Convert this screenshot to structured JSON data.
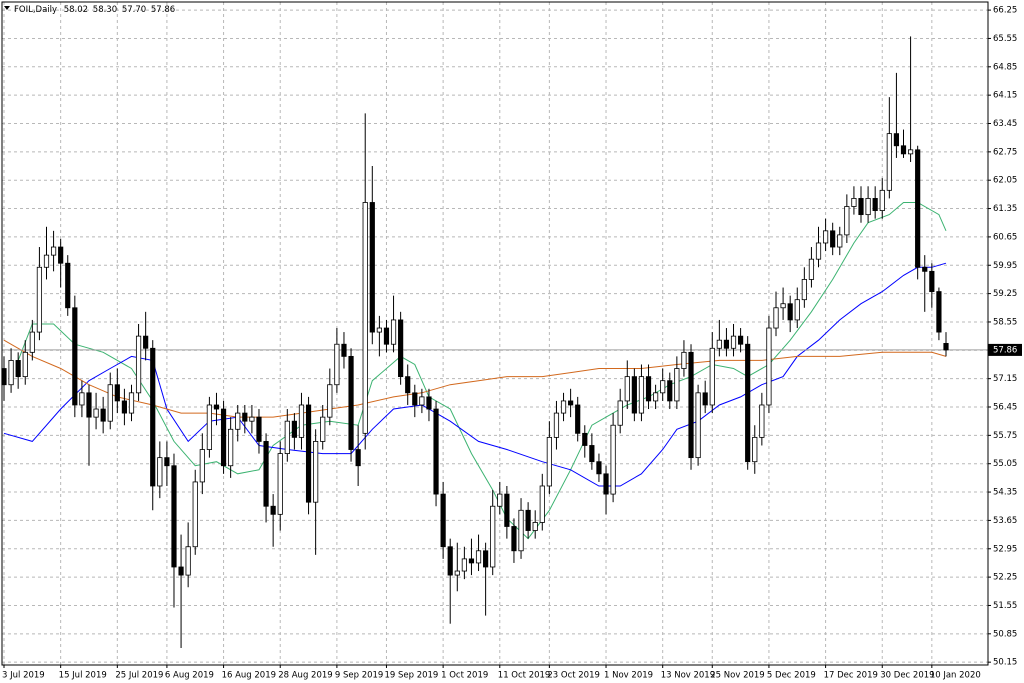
{
  "chart_data": {
    "type": "candlestick",
    "title": "FOIL,Daily",
    "header_labels": {
      "open": "58.02",
      "high": "58.30",
      "low": "57.70",
      "close": "57.86"
    },
    "categories": [
      "3 Jul 2019",
      null,
      null,
      null,
      null,
      null,
      null,
      null,
      "15 Jul 2019",
      null,
      null,
      null,
      null,
      null,
      null,
      null,
      "25 Jul 2019",
      null,
      null,
      null,
      null,
      null,
      null,
      "6 Aug 2019",
      null,
      null,
      null,
      null,
      null,
      null,
      null,
      "16 Aug 2019",
      null,
      null,
      null,
      null,
      null,
      null,
      null,
      "28 Aug 2019",
      null,
      null,
      null,
      null,
      null,
      null,
      null,
      "9 Sep 2019",
      null,
      null,
      null,
      null,
      null,
      null,
      "19 Sep 2019",
      null,
      null,
      null,
      null,
      null,
      null,
      null,
      "1 Oct 2019",
      null,
      null,
      null,
      null,
      null,
      null,
      null,
      "11 Oct 2019",
      null,
      null,
      null,
      null,
      null,
      null,
      "23 Oct 2019",
      null,
      null,
      null,
      null,
      null,
      null,
      null,
      "1 Nov 2019",
      null,
      null,
      null,
      null,
      null,
      null,
      null,
      "13 Nov 2019",
      null,
      null,
      null,
      null,
      null,
      null,
      "25 Nov 2019",
      null,
      null,
      null,
      null,
      null,
      null,
      null,
      "5 Dec 2019",
      null,
      null,
      null,
      null,
      null,
      null,
      null,
      "17 Dec 2019",
      null,
      null,
      null,
      null,
      null,
      null,
      null,
      "30 Dec 2019",
      null,
      null,
      null,
      null,
      null,
      null,
      "10 Jan 2020",
      null,
      null
    ],
    "series": [
      {
        "up_color": "#ffffff",
        "down_color": "#000000",
        "outline": "#000000",
        "open": [
          57.4,
          57.0,
          57.6,
          57.2,
          57.8,
          58.3,
          59.9,
          60.2,
          60.4,
          60.0,
          58.9,
          56.5,
          56.8,
          56.2,
          56.4,
          56.1,
          57.0,
          56.6,
          56.3,
          56.8,
          58.2,
          57.9,
          54.5,
          55.2,
          55.0,
          52.5,
          52.3,
          53.0,
          54.6,
          55.4,
          56.5,
          56.4,
          55.0,
          55.9,
          56.3,
          56.1,
          56.2,
          55.6,
          54.0,
          53.8,
          55.3,
          56.1,
          55.7,
          56.5,
          54.1,
          55.6,
          56.2,
          57.0,
          58.0,
          57.7,
          55.4,
          55.8,
          61.5,
          58.3,
          58.4,
          58.0,
          58.6,
          57.2,
          56.8,
          56.5,
          56.7,
          56.4,
          54.3,
          53.0,
          52.3,
          52.4,
          52.7,
          52.6,
          52.9,
          52.5,
          54.0,
          54.3,
          53.5,
          52.9,
          53.9,
          53.4,
          53.6,
          54.5,
          55.7,
          56.3,
          56.6,
          56.5,
          55.8,
          55.5,
          55.1,
          54.8,
          54.3,
          56.0,
          56.6,
          57.2,
          56.3,
          57.2,
          56.6,
          56.8,
          57.1,
          56.6,
          57.4,
          57.8,
          55.2,
          56.8,
          56.5,
          57.9,
          58.1,
          57.9,
          58.2,
          58.0,
          55.1,
          55.7,
          56.5,
          58.4,
          58.9,
          59.0,
          58.6,
          59.1,
          59.6,
          60.1,
          60.5,
          60.8,
          60.4,
          60.7,
          61.4,
          61.6,
          61.2,
          61.6,
          61.3,
          61.8,
          63.2,
          62.9,
          62.7,
          62.8,
          59.9,
          59.8,
          59.3,
          58.02
        ],
        "high": [
          57.7,
          57.9,
          57.8,
          58.1,
          58.6,
          60.4,
          60.9,
          60.8,
          60.6,
          60.2,
          59.2,
          57.1,
          57.0,
          56.8,
          56.7,
          57.3,
          57.4,
          56.9,
          57.0,
          58.5,
          58.8,
          58.1,
          55.6,
          55.6,
          55.3,
          53.3,
          53.6,
          54.9,
          55.8,
          56.7,
          56.8,
          56.6,
          56.2,
          56.5,
          56.5,
          56.5,
          56.4,
          55.8,
          54.3,
          55.6,
          56.4,
          56.3,
          56.8,
          56.7,
          55.9,
          56.5,
          57.4,
          58.4,
          58.3,
          57.9,
          56.0,
          63.7,
          62.4,
          58.7,
          58.6,
          59.2,
          58.8,
          57.5,
          57.0,
          56.9,
          56.9,
          56.6,
          54.6,
          53.2,
          53.1,
          53.0,
          53.2,
          53.3,
          53.1,
          54.4,
          54.6,
          54.5,
          53.7,
          54.2,
          54.1,
          53.9,
          54.8,
          56.1,
          56.6,
          56.8,
          56.9,
          56.7,
          56.0,
          55.8,
          55.3,
          55.0,
          56.3,
          56.9,
          57.6,
          57.4,
          57.5,
          57.5,
          57.0,
          57.4,
          57.3,
          57.7,
          58.1,
          58.0,
          57.0,
          57.1,
          58.3,
          58.6,
          58.4,
          58.5,
          58.4,
          58.2,
          56.0,
          56.8,
          58.7,
          59.3,
          59.4,
          59.2,
          59.4,
          59.9,
          60.4,
          60.9,
          61.1,
          61.0,
          60.9,
          61.7,
          61.9,
          61.9,
          61.9,
          61.9,
          62.1,
          64.1,
          64.7,
          63.3,
          65.6,
          62.9,
          60.2,
          60.0,
          59.4,
          58.3
        ],
        "low": [
          56.6,
          56.8,
          56.9,
          57.0,
          57.6,
          58.1,
          59.6,
          59.8,
          59.4,
          58.7,
          56.2,
          56.2,
          55.0,
          55.9,
          55.8,
          55.9,
          56.3,
          56.0,
          56.1,
          56.6,
          57.6,
          53.9,
          54.2,
          54.5,
          51.5,
          50.5,
          52.0,
          52.8,
          54.3,
          55.2,
          56.0,
          54.8,
          54.7,
          55.6,
          55.8,
          55.8,
          55.3,
          53.6,
          53.0,
          53.4,
          55.1,
          55.4,
          55.4,
          53.8,
          52.8,
          55.4,
          56.0,
          56.8,
          57.4,
          55.1,
          54.5,
          55.4,
          58.0,
          57.7,
          57.8,
          57.8,
          57.0,
          56.5,
          56.2,
          56.3,
          56.1,
          54.0,
          52.7,
          51.1,
          51.9,
          52.2,
          52.3,
          52.4,
          51.3,
          52.3,
          53.8,
          53.2,
          52.6,
          52.7,
          53.2,
          53.2,
          53.4,
          54.3,
          55.4,
          56.1,
          56.2,
          55.6,
          55.2,
          54.9,
          54.6,
          53.8,
          54.1,
          55.8,
          56.4,
          56.1,
          56.1,
          56.4,
          56.4,
          56.6,
          56.4,
          56.4,
          57.2,
          54.9,
          55.0,
          56.3,
          56.3,
          57.7,
          57.7,
          57.7,
          57.8,
          54.9,
          54.8,
          55.5,
          56.3,
          58.2,
          58.6,
          58.3,
          58.4,
          58.9,
          59.4,
          59.9,
          60.3,
          60.2,
          60.2,
          60.5,
          61.2,
          61.0,
          61.0,
          61.1,
          61.1,
          61.6,
          62.6,
          62.6,
          62.5,
          59.6,
          58.8,
          58.9,
          58.1,
          57.7
        ],
        "close": [
          57.0,
          57.6,
          57.2,
          57.8,
          58.3,
          59.9,
          60.2,
          60.4,
          60.0,
          58.9,
          56.5,
          56.8,
          56.2,
          56.4,
          56.1,
          57.0,
          56.6,
          56.3,
          56.8,
          58.2,
          57.9,
          54.5,
          55.2,
          55.0,
          52.5,
          52.3,
          53.0,
          54.6,
          55.4,
          56.5,
          56.4,
          55.0,
          55.9,
          56.3,
          56.1,
          56.2,
          55.6,
          54.0,
          53.8,
          55.3,
          56.1,
          55.7,
          56.5,
          54.1,
          55.6,
          56.2,
          57.0,
          58.0,
          57.7,
          55.4,
          55.0,
          61.5,
          58.3,
          58.4,
          58.0,
          58.6,
          57.2,
          56.8,
          56.5,
          56.7,
          56.4,
          54.3,
          53.0,
          52.3,
          52.4,
          52.7,
          52.6,
          52.9,
          52.5,
          54.0,
          54.3,
          53.5,
          52.9,
          53.9,
          53.4,
          53.6,
          54.5,
          55.7,
          56.3,
          56.6,
          56.5,
          55.8,
          55.5,
          55.1,
          54.8,
          54.3,
          56.0,
          56.6,
          57.2,
          56.3,
          57.2,
          56.6,
          56.8,
          57.1,
          56.6,
          57.4,
          57.8,
          55.2,
          56.8,
          56.5,
          57.9,
          58.1,
          57.9,
          58.2,
          58.0,
          55.1,
          55.7,
          56.5,
          58.4,
          58.9,
          59.0,
          58.6,
          59.1,
          59.6,
          60.1,
          60.5,
          60.8,
          60.4,
          60.7,
          61.4,
          61.6,
          61.2,
          61.6,
          61.3,
          61.8,
          63.2,
          62.9,
          62.7,
          62.8,
          59.9,
          59.8,
          59.3,
          58.3,
          57.86
        ]
      }
    ],
    "lines": [
      {
        "color": "#3cb371",
        "x": [
          2,
          4,
          7,
          10,
          14,
          18,
          21,
          24,
          27,
          30,
          33,
          36,
          38,
          42,
          46,
          50,
          52,
          56,
          58,
          60,
          63,
          66,
          69,
          71,
          74,
          77,
          80,
          83,
          86,
          88,
          91,
          94,
          97,
          100,
          103,
          105,
          108,
          111,
          114,
          117,
          120,
          122,
          125,
          127,
          129,
          132,
          133
        ],
        "values": [
          57.6,
          58.5,
          58.5,
          58.0,
          57.8,
          57.4,
          56.6,
          55.6,
          55.0,
          55.1,
          54.8,
          54.9,
          55.5,
          56.0,
          56.1,
          56.0,
          57.1,
          57.7,
          57.5,
          56.7,
          56.4,
          55.3,
          54.4,
          53.7,
          53.2,
          53.9,
          54.9,
          56.0,
          56.3,
          56.5,
          56.7,
          57.0,
          57.2,
          57.5,
          57.4,
          57.2,
          57.5,
          58.1,
          58.8,
          59.6,
          60.5,
          61.0,
          61.2,
          61.5,
          61.5,
          61.2,
          60.8
        ]
      },
      {
        "color": "#0000ff",
        "x": [
          0,
          4,
          8,
          12,
          15,
          18,
          21,
          23,
          26,
          29,
          33,
          36,
          40,
          45,
          49,
          52,
          55,
          59,
          63,
          67,
          71,
          76,
          80,
          84,
          87,
          90,
          93,
          95,
          98,
          101,
          104,
          107,
          110,
          112,
          115,
          118,
          121,
          124,
          127,
          129,
          131,
          133
        ],
        "values": [
          55.8,
          55.6,
          56.4,
          57.1,
          57.4,
          57.7,
          57.6,
          56.4,
          55.6,
          56.1,
          56.2,
          55.5,
          55.4,
          55.3,
          55.3,
          55.9,
          56.4,
          56.5,
          56.1,
          55.6,
          55.4,
          55.1,
          54.9,
          54.5,
          54.5,
          54.8,
          55.4,
          55.9,
          56.1,
          56.5,
          56.7,
          57.0,
          57.2,
          57.7,
          58.1,
          58.6,
          59.0,
          59.3,
          59.7,
          59.9,
          59.9,
          60.0
        ]
      },
      {
        "color": "#d2691e",
        "x": [
          0,
          4,
          8,
          12,
          16,
          21,
          25,
          29,
          33,
          38,
          42,
          46,
          50,
          55,
          59,
          63,
          67,
          71,
          76,
          80,
          84,
          90,
          95,
          101,
          107,
          112,
          118,
          124,
          128,
          131,
          133
        ],
        "values": [
          58.1,
          57.7,
          57.4,
          57.0,
          56.7,
          56.5,
          56.3,
          56.3,
          56.2,
          56.2,
          56.3,
          56.4,
          56.5,
          56.7,
          56.8,
          57.0,
          57.1,
          57.2,
          57.2,
          57.3,
          57.4,
          57.4,
          57.5,
          57.6,
          57.6,
          57.7,
          57.7,
          57.8,
          57.8,
          57.8,
          57.7
        ]
      }
    ],
    "ylim": [
      50.08,
      66.45
    ],
    "yticks": [
      66.25,
      65.55,
      64.85,
      64.15,
      63.45,
      62.75,
      62.05,
      61.35,
      60.65,
      59.95,
      59.25,
      58.55,
      57.85,
      57.15,
      56.45,
      55.75,
      55.05,
      54.35,
      53.65,
      52.95,
      52.25,
      51.55,
      50.85,
      50.15
    ],
    "grid": true,
    "price_line_color": "#a0a0a0"
  }
}
